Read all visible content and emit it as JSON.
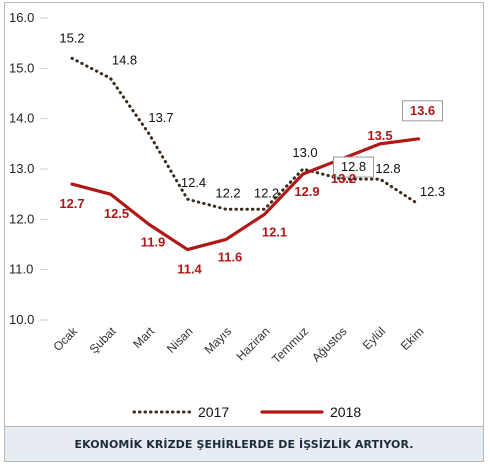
{
  "chart_data": {
    "type": "line",
    "categories": [
      "Ocak",
      "Şubat",
      "Mart",
      "Nisan",
      "Mayıs",
      "Haziran",
      "Temmuz",
      "Ağustos",
      "Eylül",
      "Ekim"
    ],
    "series": [
      {
        "name": "2017",
        "values": [
          15.2,
          14.8,
          13.7,
          12.4,
          12.2,
          12.2,
          13.0,
          12.8,
          12.8,
          12.3
        ],
        "color": "#3a2a1a",
        "style": "dotted"
      },
      {
        "name": "2018",
        "values": [
          12.7,
          12.5,
          11.9,
          11.4,
          11.6,
          12.1,
          12.9,
          13.2,
          13.5,
          13.6
        ],
        "color": "#b01818",
        "style": "solid"
      }
    ],
    "yticks": [
      "10.0",
      "11.0",
      "12.0",
      "13.0",
      "14.0",
      "15.0",
      "16.0"
    ],
    "ylim": [
      10,
      16
    ],
    "labels_2017": [
      "15.2",
      "14.8",
      "13.7",
      "12.4",
      "12.2",
      "12.2",
      "13.0",
      "12.8",
      "12.8",
      "12.3"
    ],
    "labels_2018": [
      "12.7",
      "12.5",
      "11.9",
      "11.4",
      "11.6",
      "12.1",
      "12.9",
      "13.2",
      "13.5",
      "13.6"
    ],
    "grid": false,
    "legend": "bottom"
  },
  "caption": "EKONOMİK KRİZDE ŞEHİRLERDE DE İŞSİZLİK ARTIYOR."
}
